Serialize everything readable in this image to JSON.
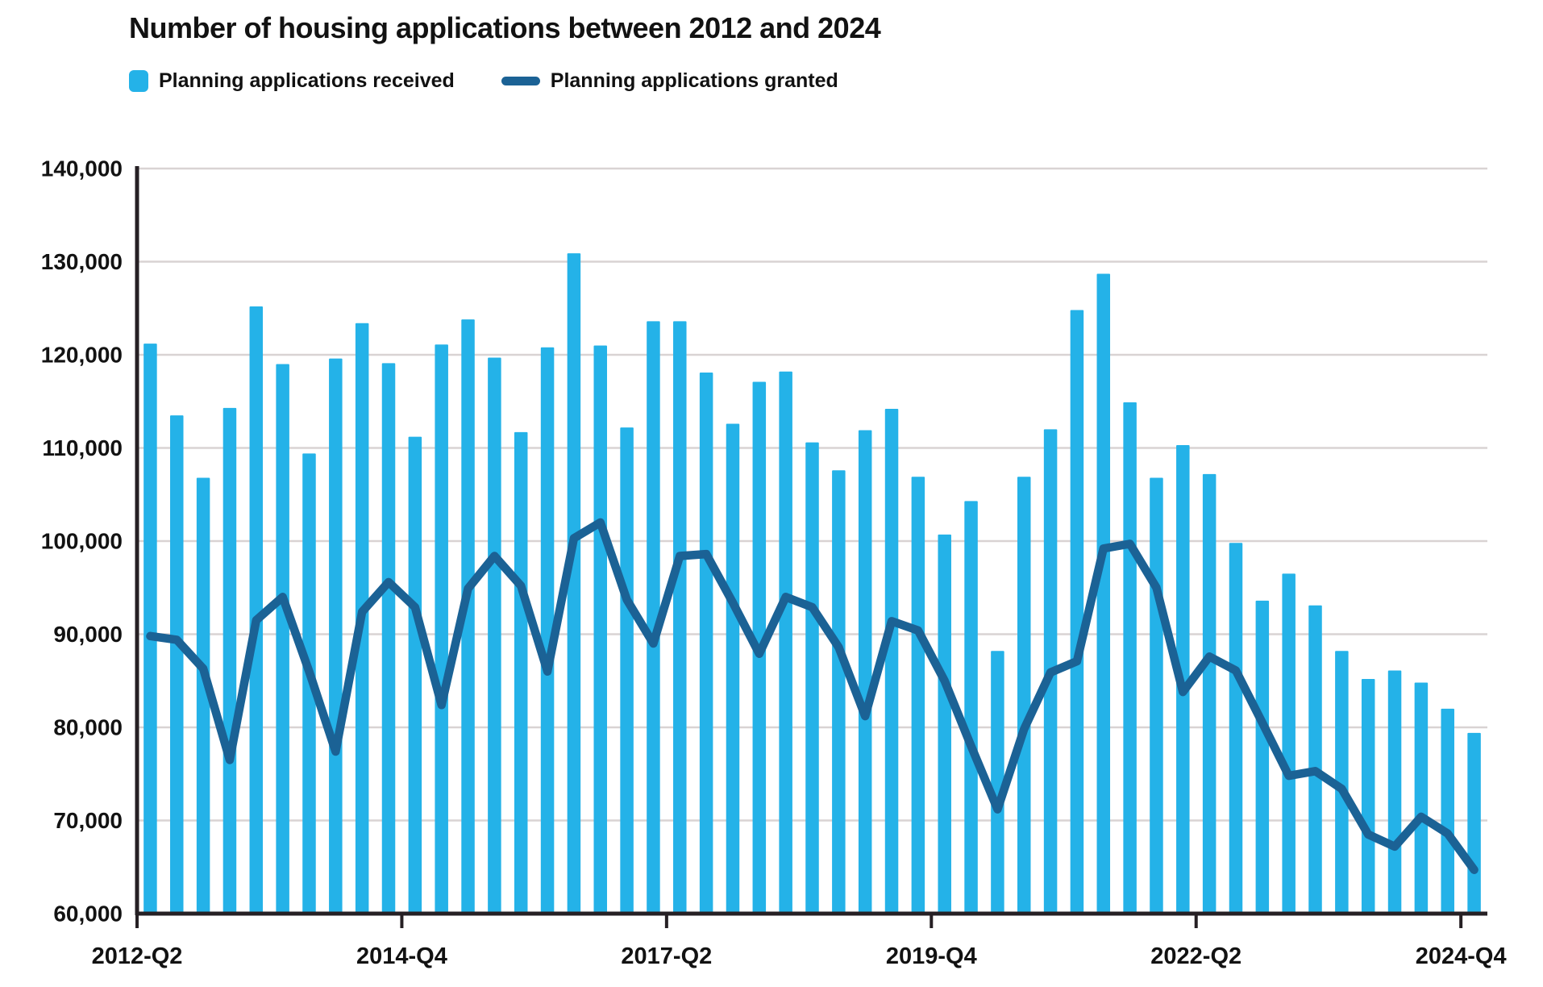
{
  "page": {
    "title": "Number of housing applications between 2012 and 2024"
  },
  "legend": {
    "received_label": "Planning applications received",
    "granted_label": "Planning applications granted"
  },
  "colors": {
    "bar": "#24B2E8",
    "line": "#1B6295",
    "grid": "#D9D3D3",
    "axis": "#262024",
    "text": "#121212"
  },
  "chart_data": {
    "type": "bar+line",
    "title": "Number of housing applications between 2012 and 2024",
    "xlabel": "",
    "ylabel": "",
    "ylim": [
      60000,
      140000
    ],
    "ytick_step": 10000,
    "grid": true,
    "legend_position": "top-left",
    "categories": [
      "2012-Q2",
      "2012-Q3",
      "2012-Q4",
      "2013-Q1",
      "2013-Q2",
      "2013-Q3",
      "2013-Q4",
      "2014-Q1",
      "2014-Q2",
      "2014-Q3",
      "2014-Q4",
      "2015-Q1",
      "2015-Q2",
      "2015-Q3",
      "2015-Q4",
      "2016-Q1",
      "2016-Q2",
      "2016-Q3",
      "2016-Q4",
      "2017-Q1",
      "2017-Q2",
      "2017-Q3",
      "2017-Q4",
      "2018-Q1",
      "2018-Q2",
      "2018-Q3",
      "2018-Q4",
      "2019-Q1",
      "2019-Q2",
      "2019-Q3",
      "2019-Q4",
      "2020-Q1",
      "2020-Q2",
      "2020-Q3",
      "2020-Q4",
      "2021-Q1",
      "2021-Q2",
      "2021-Q3",
      "2021-Q4",
      "2022-Q1",
      "2022-Q2",
      "2022-Q3",
      "2022-Q4",
      "2023-Q1",
      "2023-Q2",
      "2023-Q3",
      "2023-Q4",
      "2024-Q1",
      "2024-Q2",
      "2024-Q3",
      "2024-Q4"
    ],
    "x_tick_labels": [
      {
        "index": 0,
        "label": "2012-Q2"
      },
      {
        "index": 10,
        "label": "2014-Q4"
      },
      {
        "index": 20,
        "label": "2017-Q2"
      },
      {
        "index": 30,
        "label": "2019-Q4"
      },
      {
        "index": 40,
        "label": "2022-Q2"
      },
      {
        "index": 50,
        "label": "2024-Q4"
      }
    ],
    "series": [
      {
        "name": "Planning applications received",
        "type": "bar",
        "values": [
          121200,
          113500,
          106800,
          114300,
          125200,
          119000,
          109400,
          119600,
          123400,
          119100,
          111200,
          121100,
          123800,
          119700,
          111700,
          120800,
          130900,
          121000,
          112200,
          123600,
          123600,
          118100,
          112600,
          117100,
          118200,
          110600,
          107600,
          111900,
          114200,
          106900,
          100700,
          104300,
          88200,
          106900,
          112000,
          124800,
          128700,
          114900,
          106800,
          110300,
          107200,
          99800,
          93600,
          96500,
          93100,
          88200,
          85200,
          86100,
          84800,
          82000,
          79400
        ]
      },
      {
        "name": "Planning applications granted",
        "type": "line",
        "values": [
          89800,
          89400,
          86300,
          76500,
          91500,
          94000,
          86000,
          77400,
          92400,
          95600,
          92900,
          82400,
          94900,
          98400,
          95200,
          86000,
          100300,
          102000,
          93700,
          89000,
          98400,
          98600,
          93400,
          87900,
          94000,
          92900,
          88600,
          81200,
          91400,
          90400,
          85000,
          78000,
          71200,
          79800,
          85900,
          87100,
          99200,
          99700,
          95000,
          83800,
          87600,
          86100,
          80500,
          74800,
          75300,
          73400,
          68500,
          67200,
          70400,
          68600,
          64700
        ]
      }
    ]
  }
}
